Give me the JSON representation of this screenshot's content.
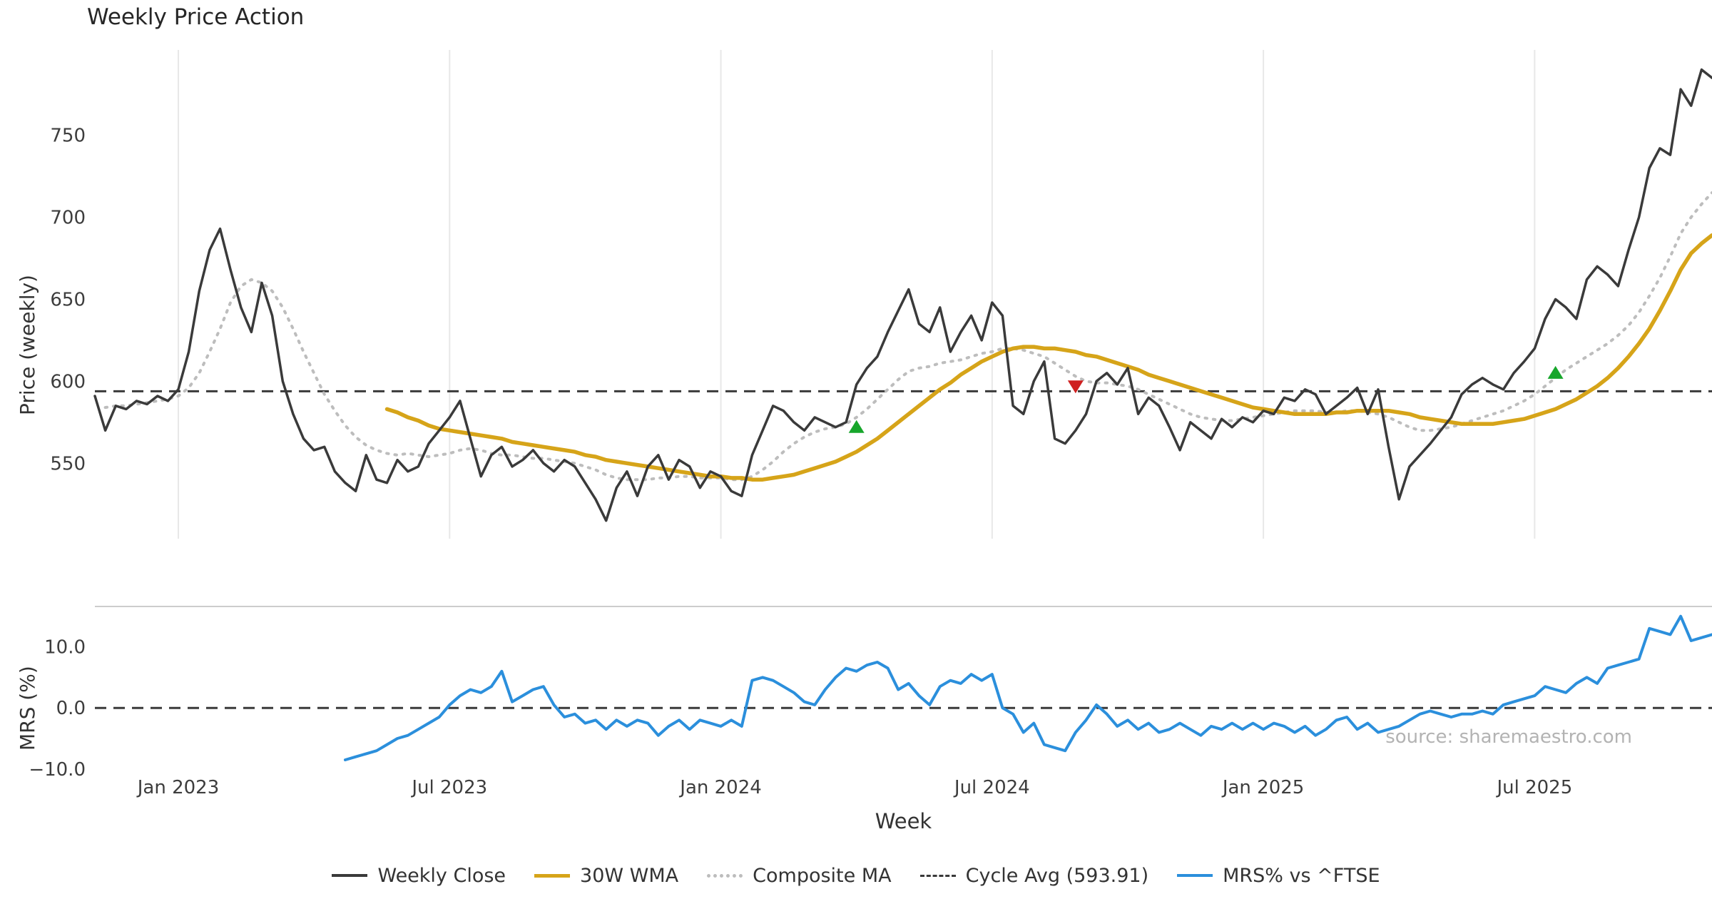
{
  "title": "Weekly Price Action",
  "watermark": "source: sharemaestro.com",
  "chart_data": {
    "type": "line",
    "title": "Weekly Price Action",
    "xlabel": "Week",
    "x_unit": "weekly, approx Nov 2022 - Nov 2025",
    "weeks_total": 156,
    "grid": "vertical-only-top-panel",
    "legend_position": "bottom-center",
    "style": {
      "grid_color": "#e8e8e8",
      "panel_border_color": "#cccccc",
      "tick_color": "#3d3d3d"
    },
    "x_ticks": {
      "weeks": [
        8,
        34,
        60,
        86,
        112,
        138
      ],
      "labels": [
        "Jan 2023",
        "Jul 2023",
        "Jan 2024",
        "Jul 2024",
        "Jan 2025",
        "Jul 2025"
      ]
    },
    "panels": [
      {
        "name": "price",
        "ylabel": "Price (weekly)",
        "ylim": [
          504,
          802
        ],
        "top_border": false,
        "grid_vertical": true,
        "y_ticks": [
          {
            "v": 550,
            "label": "550"
          },
          {
            "v": 600,
            "label": "600"
          },
          {
            "v": 650,
            "label": "650"
          },
          {
            "v": 700,
            "label": "700"
          },
          {
            "v": 750,
            "label": "750"
          }
        ],
        "reference_line": {
          "name": "cycle-average-line",
          "value": 593.91,
          "color": "#3a3a3a",
          "style": "dashed",
          "label": "Cycle Avg (593.91)"
        },
        "series": [
          {
            "name": "Composite MA",
            "data_name": "composite-ma-line",
            "color": "#bdbdbd",
            "style": "dotted",
            "width": 4,
            "start_week": 1,
            "values": [
              584,
              585,
              585,
              586,
              587,
              588,
              589,
              591,
              596,
              605,
              618,
              632,
              648,
              658,
              662,
              660,
              655,
              645,
              632,
              618,
              605,
              592,
              582,
              573,
              566,
              561,
              558,
              556,
              555,
              556,
              555,
              554,
              555,
              556,
              558,
              559,
              558,
              556,
              555,
              555,
              554,
              553,
              553,
              552,
              551,
              550,
              548,
              546,
              543,
              541,
              540,
              540,
              540,
              541,
              541,
              542,
              542,
              541,
              541,
              541,
              540,
              540,
              542,
              546,
              551,
              557,
              562,
              566,
              569,
              571,
              572,
              574,
              578,
              583,
              589,
              595,
              601,
              606,
              608,
              609,
              611,
              612,
              613,
              615,
              617,
              618,
              620,
              620,
              619,
              617,
              615,
              611,
              607,
              603,
              600,
              599,
              599,
              598,
              597,
              595,
              592,
              589,
              586,
              583,
              580,
              578,
              577,
              576,
              576,
              577,
              578,
              579,
              580,
              581,
              582,
              582,
              582,
              581,
              581,
              582,
              582,
              581,
              580,
              578,
              575,
              572,
              570,
              570,
              571,
              572,
              574,
              576,
              578,
              580,
              582,
              585,
              588,
              592,
              597,
              602,
              607,
              611,
              615,
              619,
              623,
              628,
              634,
              642,
              652,
              663,
              676,
              690,
              700,
              708,
              715
            ]
          },
          {
            "name": "30W WMA",
            "data_name": "wma-30w-line",
            "color": "#d6a419",
            "style": "solid",
            "width": 5.5,
            "start_week": 28,
            "values": [
              583,
              581,
              578,
              576,
              573,
              571,
              570,
              569,
              568,
              567,
              566,
              565,
              563,
              562,
              561,
              560,
              559,
              558,
              557,
              555,
              554,
              552,
              551,
              550,
              549,
              548,
              547,
              546,
              545,
              544,
              543,
              542,
              542,
              541,
              541,
              540,
              540,
              541,
              542,
              543,
              545,
              547,
              549,
              551,
              554,
              557,
              561,
              565,
              570,
              575,
              580,
              585,
              590,
              595,
              599,
              604,
              608,
              612,
              615,
              618,
              620,
              621,
              621,
              620,
              620,
              619,
              618,
              616,
              615,
              613,
              611,
              609,
              607,
              604,
              602,
              600,
              598,
              596,
              594,
              592,
              590,
              588,
              586,
              584,
              583,
              582,
              581,
              580,
              580,
              580,
              580,
              581,
              581,
              582,
              582,
              582,
              582,
              581,
              580,
              578,
              577,
              576,
              575,
              574,
              574,
              574,
              574,
              575,
              576,
              577,
              579,
              581,
              583,
              586,
              589,
              593,
              597,
              602,
              608,
              615,
              623,
              632,
              643,
              655,
              668,
              678,
              684,
              689
            ]
          },
          {
            "name": "Weekly Close",
            "data_name": "weekly-close-line",
            "color": "#3a3a3a",
            "style": "solid",
            "width": 3.5,
            "start_week": 0,
            "values": [
              591,
              570,
              585,
              583,
              588,
              586,
              591,
              588,
              595,
              618,
              655,
              680,
              693,
              668,
              645,
              630,
              660,
              640,
              600,
              580,
              565,
              558,
              560,
              545,
              538,
              533,
              555,
              540,
              538,
              552,
              545,
              548,
              562,
              570,
              578,
              588,
              565,
              542,
              555,
              560,
              548,
              552,
              558,
              550,
              545,
              552,
              548,
              538,
              528,
              515,
              535,
              545,
              530,
              548,
              555,
              540,
              552,
              548,
              535,
              545,
              542,
              533,
              530,
              555,
              570,
              585,
              582,
              575,
              570,
              578,
              575,
              572,
              575,
              598,
              608,
              615,
              630,
              643,
              656,
              635,
              630,
              645,
              618,
              630,
              640,
              625,
              648,
              640,
              585,
              580,
              600,
              612,
              565,
              562,
              570,
              580,
              600,
              605,
              598,
              608,
              580,
              590,
              585,
              572,
              558,
              575,
              570,
              565,
              577,
              572,
              578,
              575,
              582,
              580,
              590,
              588,
              595,
              592,
              580,
              585,
              590,
              596,
              580,
              595,
              560,
              528,
              548,
              555,
              562,
              570,
              578,
              592,
              598,
              602,
              598,
              595,
              605,
              612,
              620,
              638,
              650,
              645,
              638,
              662,
              670,
              665,
              658,
              680,
              700,
              730,
              742,
              738,
              778,
              768,
              790,
              785
            ]
          }
        ],
        "markers": [
          {
            "type": "buy-signal",
            "data_name": "buy-signal-marker",
            "shape": "triangle-up",
            "color": "#17a62b",
            "points": [
              {
                "week": 73,
                "price": 572
              },
              {
                "week": 140,
                "price": 605
              }
            ]
          },
          {
            "type": "sell-signal",
            "data_name": "sell-signal-marker",
            "shape": "triangle-down",
            "color": "#cf1f1f",
            "points": [
              {
                "week": 94,
                "price": 597
              }
            ]
          }
        ]
      },
      {
        "name": "mrs",
        "ylabel": "MRS (%)",
        "ylim": [
          -10.6,
          16.6
        ],
        "top_border": true,
        "grid_vertical": false,
        "y_ticks": [
          {
            "v": -10,
            "label": "−10.0"
          },
          {
            "v": 0,
            "label": "0.0"
          },
          {
            "v": 10,
            "label": "10.0"
          }
        ],
        "reference_line": {
          "name": "zero-line",
          "value": 0,
          "color": "#3a3a3a",
          "style": "dashed",
          "label": ""
        },
        "series": [
          {
            "name": "MRS% vs ^FTSE",
            "data_name": "mrs-line",
            "color": "#2b8fdc",
            "style": "solid",
            "width": 4,
            "start_week": 24,
            "values": [
              -8.5,
              -8,
              -7.5,
              -7,
              -6,
              -5,
              -4.5,
              -3.5,
              -2.5,
              -1.5,
              0.5,
              2,
              3,
              2.5,
              3.5,
              6,
              1,
              2,
              3,
              3.5,
              0.5,
              -1.5,
              -1,
              -2.5,
              -2,
              -3.5,
              -2,
              -3,
              -2,
              -2.5,
              -4.5,
              -3,
              -2,
              -3.5,
              -2,
              -2.5,
              -3,
              -2,
              -3,
              4.5,
              5,
              4.5,
              3.5,
              2.5,
              1,
              0.5,
              3,
              5,
              6.5,
              6,
              7,
              7.5,
              6.5,
              3,
              4,
              2,
              0.5,
              3.5,
              4.5,
              4,
              5.5,
              4.5,
              5.5,
              0,
              -1,
              -4,
              -2.5,
              -6,
              -6.5,
              -7,
              -4,
              -2,
              0.5,
              -1,
              -3,
              -2,
              -3.5,
              -2.5,
              -4,
              -3.5,
              -2.5,
              -3.5,
              -4.5,
              -3,
              -3.5,
              -2.5,
              -3.5,
              -2.5,
              -3.5,
              -2.5,
              -3,
              -4,
              -3,
              -4.5,
              -3.5,
              -2,
              -1.5,
              -3.5,
              -2.5,
              -4,
              -3.5,
              -3,
              -2,
              -1,
              -0.5,
              -1,
              -1.5,
              -1,
              -1,
              -0.5,
              -1,
              0.5,
              1,
              1.5,
              2,
              3.5,
              3,
              2.5,
              4,
              5,
              4,
              6.5,
              7,
              7.5,
              8,
              13,
              12.5,
              12,
              15,
              11,
              11.5,
              12
            ]
          }
        ],
        "markers": []
      }
    ],
    "legend": [
      {
        "label": "Weekly Close",
        "color": "#3a3a3a",
        "style": "solid",
        "icon": "weekly-close-line-swatch"
      },
      {
        "label": "30W WMA",
        "color": "#d6a419",
        "style": "gold",
        "icon": "wma-30w-line-swatch"
      },
      {
        "label": "Composite MA",
        "color": "#bdbdbd",
        "style": "dotted",
        "icon": "composite-ma-line-swatch"
      },
      {
        "label": "Cycle Avg (593.91)",
        "color": "#3a3a3a",
        "style": "dashed",
        "icon": "cycle-avg-line-swatch"
      },
      {
        "label": "MRS% vs ^FTSE",
        "color": "#2b8fdc",
        "style": "solid",
        "icon": "mrs-line-swatch"
      }
    ]
  }
}
